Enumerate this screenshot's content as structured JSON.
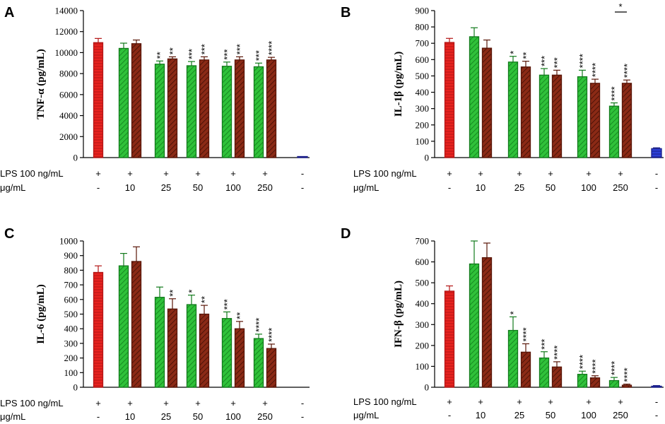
{
  "colors": {
    "lps": "#e8231f",
    "lps_stroke": "#b41616",
    "green": "#2fc23a",
    "green_stroke": "#127a1c",
    "brown": "#8b2a16",
    "brown_stroke": "#5a1608",
    "blue": "#2c3fd6",
    "blue_stroke": "#1a1f8a",
    "axis": "#000000"
  },
  "chart_data": [
    {
      "panel": "A",
      "type": "bar",
      "ylabel": "TNF-α (pg/mL)",
      "ylim": [
        0,
        14000
      ],
      "yticks": [
        0,
        2000,
        4000,
        6000,
        8000,
        10000,
        12000,
        14000
      ],
      "row1_label": "LPS 100 ng/mL",
      "row2_label": "μg/mL",
      "groups": [
        {
          "row1": "+",
          "row2": "-",
          "bars": [
            {
              "kind": "lps",
              "value": 10950,
              "err": 400,
              "sig": ""
            }
          ]
        },
        {
          "row1": "+",
          "row2": "10",
          "bars": [
            {
              "kind": "green",
              "value": 10400,
              "err": 500,
              "sig": ""
            },
            {
              "kind": "brown",
              "value": 10850,
              "err": 350,
              "sig": ""
            }
          ]
        },
        {
          "row1": "+",
          "row2": "25",
          "bars": [
            {
              "kind": "green",
              "value": 8900,
              "err": 300,
              "sig": "**"
            },
            {
              "kind": "brown",
              "value": 9400,
              "err": 200,
              "sig": "**"
            }
          ]
        },
        {
          "row1": "+",
          "row2": "50",
          "bars": [
            {
              "kind": "green",
              "value": 8750,
              "err": 400,
              "sig": "***"
            },
            {
              "kind": "brown",
              "value": 9300,
              "err": 300,
              "sig": "***"
            }
          ]
        },
        {
          "row1": "+",
          "row2": "100",
          "bars": [
            {
              "kind": "green",
              "value": 8700,
              "err": 400,
              "sig": "***"
            },
            {
              "kind": "brown",
              "value": 9300,
              "err": 300,
              "sig": "***"
            }
          ]
        },
        {
          "row1": "+",
          "row2": "250",
          "bars": [
            {
              "kind": "green",
              "value": 8650,
              "err": 350,
              "sig": "***"
            },
            {
              "kind": "brown",
              "value": 9300,
              "err": 250,
              "sig": "****"
            }
          ]
        },
        {
          "row1": "-",
          "row2": "-",
          "bars": [
            {
              "kind": "blue",
              "value": 80,
              "err": 0,
              "sig": ""
            }
          ]
        }
      ],
      "bracket": null
    },
    {
      "panel": "B",
      "type": "bar",
      "ylabel": "IL-1β (pg/mL)",
      "ylim": [
        0,
        900
      ],
      "yticks": [
        0,
        100,
        200,
        300,
        400,
        500,
        600,
        700,
        800,
        900
      ],
      "row1_label": "LPS 100 ng/mL",
      "row2_label": "μg/mL",
      "groups": [
        {
          "row1": "+",
          "row2": "-",
          "bars": [
            {
              "kind": "lps",
              "value": 705,
              "err": 25,
              "sig": ""
            }
          ]
        },
        {
          "row1": "+",
          "row2": "10",
          "bars": [
            {
              "kind": "green",
              "value": 740,
              "err": 55,
              "sig": ""
            },
            {
              "kind": "brown",
              "value": 670,
              "err": 50,
              "sig": ""
            }
          ]
        },
        {
          "row1": "+",
          "row2": "25",
          "bars": [
            {
              "kind": "green",
              "value": 585,
              "err": 35,
              "sig": "*"
            },
            {
              "kind": "brown",
              "value": 555,
              "err": 35,
              "sig": "**"
            }
          ]
        },
        {
          "row1": "+",
          "row2": "50",
          "bars": [
            {
              "kind": "green",
              "value": 505,
              "err": 40,
              "sig": "***"
            },
            {
              "kind": "brown",
              "value": 505,
              "err": 30,
              "sig": "***"
            }
          ]
        },
        {
          "row1": "+",
          "row2": "100",
          "bars": [
            {
              "kind": "green",
              "value": 495,
              "err": 40,
              "sig": "****"
            },
            {
              "kind": "brown",
              "value": 455,
              "err": 25,
              "sig": "****"
            }
          ]
        },
        {
          "row1": "+",
          "row2": "250",
          "bars": [
            {
              "kind": "green",
              "value": 315,
              "err": 20,
              "sig": "****"
            },
            {
              "kind": "brown",
              "value": 455,
              "err": 20,
              "sig": "****"
            }
          ]
        },
        {
          "row1": "-",
          "row2": "-",
          "bars": [
            {
              "kind": "blue",
              "value": 55,
              "err": 5,
              "sig": ""
            }
          ]
        }
      ],
      "bracket": {
        "group": 5,
        "label": "*"
      }
    },
    {
      "panel": "C",
      "type": "bar",
      "ylabel": "IL-6 (pg/mL)",
      "ylim": [
        0,
        1000
      ],
      "yticks": [
        0,
        100,
        200,
        300,
        400,
        500,
        600,
        700,
        800,
        900,
        1000
      ],
      "row1_label": "LPS 100 ng/mL",
      "row2_label": "μg/mL",
      "groups": [
        {
          "row1": "+",
          "row2": "-",
          "bars": [
            {
              "kind": "lps",
              "value": 785,
              "err": 45,
              "sig": ""
            }
          ]
        },
        {
          "row1": "+",
          "row2": "10",
          "bars": [
            {
              "kind": "green",
              "value": 830,
              "err": 85,
              "sig": ""
            },
            {
              "kind": "brown",
              "value": 860,
              "err": 100,
              "sig": ""
            }
          ]
        },
        {
          "row1": "+",
          "row2": "25",
          "bars": [
            {
              "kind": "green",
              "value": 615,
              "err": 70,
              "sig": ""
            },
            {
              "kind": "brown",
              "value": 535,
              "err": 70,
              "sig": "**"
            }
          ]
        },
        {
          "row1": "+",
          "row2": "50",
          "bars": [
            {
              "kind": "green",
              "value": 565,
              "err": 65,
              "sig": "*"
            },
            {
              "kind": "brown",
              "value": 500,
              "err": 60,
              "sig": "**"
            }
          ]
        },
        {
          "row1": "+",
          "row2": "100",
          "bars": [
            {
              "kind": "green",
              "value": 470,
              "err": 45,
              "sig": "***"
            },
            {
              "kind": "brown",
              "value": 400,
              "err": 50,
              "sig": "**"
            }
          ]
        },
        {
          "row1": "+",
          "row2": "250",
          "bars": [
            {
              "kind": "green",
              "value": 333,
              "err": 30,
              "sig": "****"
            },
            {
              "kind": "brown",
              "value": 265,
              "err": 30,
              "sig": "****"
            }
          ]
        },
        {
          "row1": "-",
          "row2": "-",
          "bars": []
        }
      ],
      "bracket": null
    },
    {
      "panel": "D",
      "type": "bar",
      "ylabel": "IFN-β (pg/mL)",
      "ylim": [
        0,
        700
      ],
      "yticks": [
        0,
        100,
        200,
        300,
        400,
        500,
        600,
        700
      ],
      "row1_label": "LPS 100 ng/mL",
      "row2_label": "μg/mL",
      "groups": [
        {
          "row1": "+",
          "row2": "-",
          "bars": [
            {
              "kind": "lps",
              "value": 460,
              "err": 25,
              "sig": ""
            }
          ]
        },
        {
          "row1": "+",
          "row2": "10",
          "bars": [
            {
              "kind": "green",
              "value": 590,
              "err": 110,
              "sig": ""
            },
            {
              "kind": "brown",
              "value": 620,
              "err": 70,
              "sig": ""
            }
          ]
        },
        {
          "row1": "+",
          "row2": "25",
          "bars": [
            {
              "kind": "green",
              "value": 272,
              "err": 65,
              "sig": "*"
            },
            {
              "kind": "brown",
              "value": 168,
              "err": 40,
              "sig": "****"
            }
          ]
        },
        {
          "row1": "+",
          "row2": "50",
          "bars": [
            {
              "kind": "green",
              "value": 140,
              "err": 30,
              "sig": "***"
            },
            {
              "kind": "brown",
              "value": 97,
              "err": 25,
              "sig": "****"
            }
          ]
        },
        {
          "row1": "+",
          "row2": "100",
          "bars": [
            {
              "kind": "green",
              "value": 62,
              "err": 15,
              "sig": "****"
            },
            {
              "kind": "brown",
              "value": 45,
              "err": 10,
              "sig": "****"
            }
          ]
        },
        {
          "row1": "+",
          "row2": "250",
          "bars": [
            {
              "kind": "green",
              "value": 32,
              "err": 15,
              "sig": "****"
            },
            {
              "kind": "brown",
              "value": 10,
              "err": 5,
              "sig": "****"
            }
          ]
        },
        {
          "row1": "-",
          "row2": "-",
          "bars": [
            {
              "kind": "blue",
              "value": 5,
              "err": 3,
              "sig": ""
            }
          ]
        }
      ],
      "bracket": null
    }
  ]
}
